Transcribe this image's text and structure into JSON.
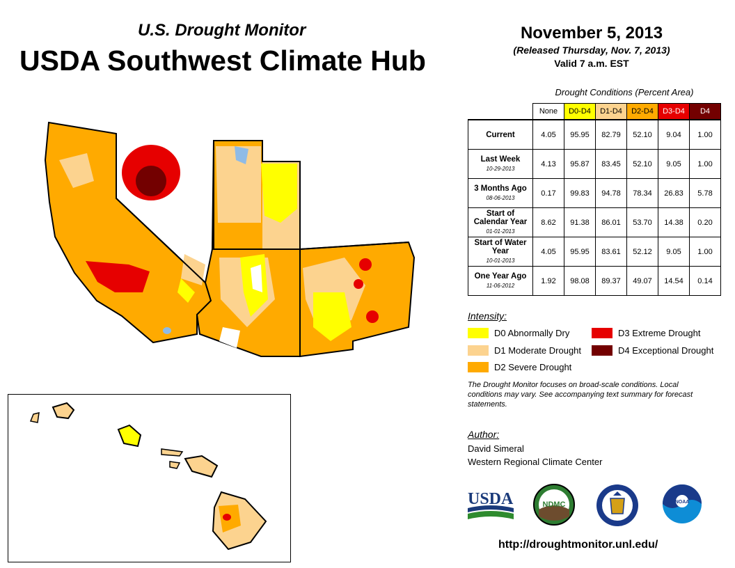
{
  "header": {
    "subtitle": "U.S. Drought Monitor",
    "title": "USDA Southwest Climate Hub",
    "date": "November 5, 2013",
    "released": "(Released Thursday, Nov. 7, 2013)",
    "valid": "Valid 7 a.m. EST"
  },
  "table": {
    "caption": "Drought Conditions (Percent Area)",
    "columns": [
      "None",
      "D0-D4",
      "D1-D4",
      "D2-D4",
      "D3-D4",
      "D4"
    ],
    "rows": [
      {
        "label": "Current",
        "date": "",
        "values": [
          "4.05",
          "95.95",
          "82.79",
          "52.10",
          "9.04",
          "1.00"
        ]
      },
      {
        "label": "Last Week",
        "date": "10-29-2013",
        "values": [
          "4.13",
          "95.87",
          "83.45",
          "52.10",
          "9.05",
          "1.00"
        ]
      },
      {
        "label": "3 Months Ago",
        "date": "08-06-2013",
        "values": [
          "0.17",
          "99.83",
          "94.78",
          "78.34",
          "26.83",
          "5.78"
        ]
      },
      {
        "label": "Start of Calendar Year",
        "date": "01-01-2013",
        "values": [
          "8.62",
          "91.38",
          "86.01",
          "53.70",
          "14.38",
          "0.20"
        ]
      },
      {
        "label": "Start of Water Year",
        "date": "10-01-2013",
        "values": [
          "4.05",
          "95.95",
          "83.61",
          "52.12",
          "9.05",
          "1.00"
        ]
      },
      {
        "label": "One Year Ago",
        "date": "11-06-2012",
        "values": [
          "1.92",
          "98.08",
          "89.37",
          "49.07",
          "14.54",
          "0.14"
        ]
      }
    ]
  },
  "legend": {
    "title": "Intensity:",
    "items": [
      {
        "label": "D0 Abnormally Dry",
        "color": "#ffff00"
      },
      {
        "label": "D1 Moderate Drought",
        "color": "#fcd38f"
      },
      {
        "label": "D2 Severe Drought",
        "color": "#ffaa00"
      },
      {
        "label": "D3 Extreme Drought",
        "color": "#e60000"
      },
      {
        "label": "D4 Exceptional Drought",
        "color": "#730000"
      }
    ]
  },
  "note": "The Drought Monitor focuses on broad-scale conditions. Local conditions may vary. See accompanying text summary for forecast statements.",
  "author": {
    "label": "Author:",
    "name": "David Simeral",
    "org": "Western Regional Climate Center"
  },
  "logos": {
    "usda": "USDA",
    "ndmc": "NDMC",
    "noaa": "NOAA"
  },
  "url": "http://droughtmonitor.unl.edu/",
  "colors": {
    "none": "#ffffff",
    "d0": "#ffff00",
    "d1": "#fcd38f",
    "d2": "#ffaa00",
    "d3": "#e60000",
    "d4": "#730000"
  }
}
